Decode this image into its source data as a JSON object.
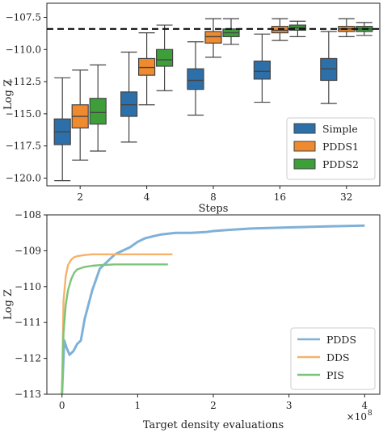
{
  "chart_data": [
    {
      "type": "box",
      "xlabel": "Steps",
      "ylabel": "Log Z",
      "ylim": [
        -120.6,
        -106.4
      ],
      "yticks": [
        -120.0,
        -117.5,
        -115.0,
        -112.5,
        -110.0,
        -107.5
      ],
      "ytick_labels": [
        "−120.0",
        "−117.5",
        "−115.0",
        "−112.5",
        "−110.0",
        "−107.5"
      ],
      "categories": [
        "2",
        "4",
        "8",
        "16",
        "32"
      ],
      "reference_line": -108.4,
      "legend_position": "lower right",
      "series": [
        {
          "name": "Simple",
          "color": "#2d6fa8",
          "boxes": [
            {
              "whislo": -120.2,
              "q1": -117.4,
              "med": -116.4,
              "q3": -115.4,
              "whishi": -112.2
            },
            {
              "whislo": -117.2,
              "q1": -115.2,
              "med": -114.3,
              "q3": -113.3,
              "whishi": -110.2
            },
            {
              "whislo": -115.1,
              "q1": -113.1,
              "med": -112.4,
              "q3": -111.5,
              "whishi": -109.4
            },
            {
              "whislo": -114.1,
              "q1": -112.3,
              "med": -111.7,
              "q3": -110.9,
              "whishi": -108.8
            },
            {
              "whislo": -114.2,
              "q1": -112.4,
              "med": -111.5,
              "q3": -110.7,
              "whishi": -108.6
            }
          ]
        },
        {
          "name": "PDDS1",
          "color": "#ef8a2e",
          "boxes": [
            {
              "whislo": -118.6,
              "q1": -116.1,
              "med": -115.2,
              "q3": -114.3,
              "whishi": -111.6
            },
            {
              "whislo": -114.3,
              "q1": -112.0,
              "med": -111.4,
              "q3": -110.7,
              "whishi": -108.7
            },
            {
              "whislo": -110.6,
              "q1": -109.5,
              "med": -109.0,
              "q3": -108.6,
              "whishi": -107.6
            },
            {
              "whislo": -109.3,
              "q1": -108.7,
              "med": -108.5,
              "q3": -108.2,
              "whishi": -107.6
            },
            {
              "whislo": -109.0,
              "q1": -108.6,
              "med": -108.4,
              "q3": -108.2,
              "whishi": -107.6
            }
          ]
        },
        {
          "name": "PDDS2",
          "color": "#3d9e3a",
          "boxes": [
            {
              "whislo": -117.9,
              "q1": -115.8,
              "med": -114.9,
              "q3": -113.8,
              "whishi": -111.2
            },
            {
              "whislo": -113.2,
              "q1": -111.3,
              "med": -110.8,
              "q3": -110.0,
              "whishi": -108.1
            },
            {
              "whislo": -109.6,
              "q1": -109.0,
              "med": -108.7,
              "q3": -108.4,
              "whishi": -107.6
            },
            {
              "whislo": -109.0,
              "q1": -108.5,
              "med": -108.3,
              "q3": -108.1,
              "whishi": -107.8
            },
            {
              "whislo": -108.9,
              "q1": -108.6,
              "med": -108.4,
              "q3": -108.2,
              "whishi": -107.9
            }
          ]
        }
      ]
    },
    {
      "type": "line",
      "xlabel": "Target density evaluations",
      "ylabel": "Log Z",
      "x_multiplier_label": "×10",
      "x_multiplier_exponent": "8",
      "xlim": [
        -0.2,
        4.2
      ],
      "ylim": [
        -113,
        -108
      ],
      "xticks": [
        0,
        1,
        2,
        3,
        4
      ],
      "xtick_labels": [
        "0",
        "1",
        "2",
        "3",
        "4"
      ],
      "yticks": [
        -113,
        -112,
        -111,
        -110,
        -109,
        -108
      ],
      "ytick_labels": [
        "−113",
        "−112",
        "−111",
        "−110",
        "−109",
        "−108"
      ],
      "legend_position": "lower right",
      "series": [
        {
          "name": "PDDS",
          "color": "#7fb1d8",
          "x": [
            0.0,
            0.03,
            0.06,
            0.1,
            0.15,
            0.2,
            0.25,
            0.3,
            0.35,
            0.4,
            0.45,
            0.5,
            0.6,
            0.7,
            0.8,
            0.9,
            1.0,
            1.1,
            1.2,
            1.3,
            1.5,
            1.7,
            1.9,
            2.0,
            2.2,
            2.5,
            3.0,
            3.5,
            4.0
          ],
          "y": [
            -113.0,
            -111.5,
            -111.7,
            -111.9,
            -111.8,
            -111.6,
            -111.5,
            -110.9,
            -110.5,
            -110.1,
            -109.8,
            -109.5,
            -109.3,
            -109.1,
            -109.0,
            -108.9,
            -108.75,
            -108.65,
            -108.6,
            -108.55,
            -108.5,
            -108.5,
            -108.48,
            -108.45,
            -108.42,
            -108.38,
            -108.35,
            -108.32,
            -108.3
          ]
        },
        {
          "name": "DDS",
          "color": "#f6b26b",
          "x": [
            0.0,
            0.02,
            0.05,
            0.08,
            0.12,
            0.16,
            0.2,
            0.3,
            0.4,
            0.6,
            0.8,
            1.0,
            1.2,
            1.46
          ],
          "y": [
            -113.0,
            -110.4,
            -109.7,
            -109.4,
            -109.25,
            -109.18,
            -109.15,
            -109.12,
            -109.1,
            -109.1,
            -109.1,
            -109.1,
            -109.1,
            -109.1
          ]
        },
        {
          "name": "PIS",
          "color": "#7cc47a",
          "x": [
            0.0,
            0.02,
            0.05,
            0.08,
            0.12,
            0.16,
            0.2,
            0.3,
            0.4,
            0.5,
            0.7,
            0.9,
            1.1,
            1.4
          ],
          "y": [
            -113.0,
            -111.3,
            -110.5,
            -110.1,
            -109.8,
            -109.62,
            -109.52,
            -109.45,
            -109.42,
            -109.4,
            -109.38,
            -109.38,
            -109.38,
            -109.38
          ]
        }
      ]
    }
  ]
}
